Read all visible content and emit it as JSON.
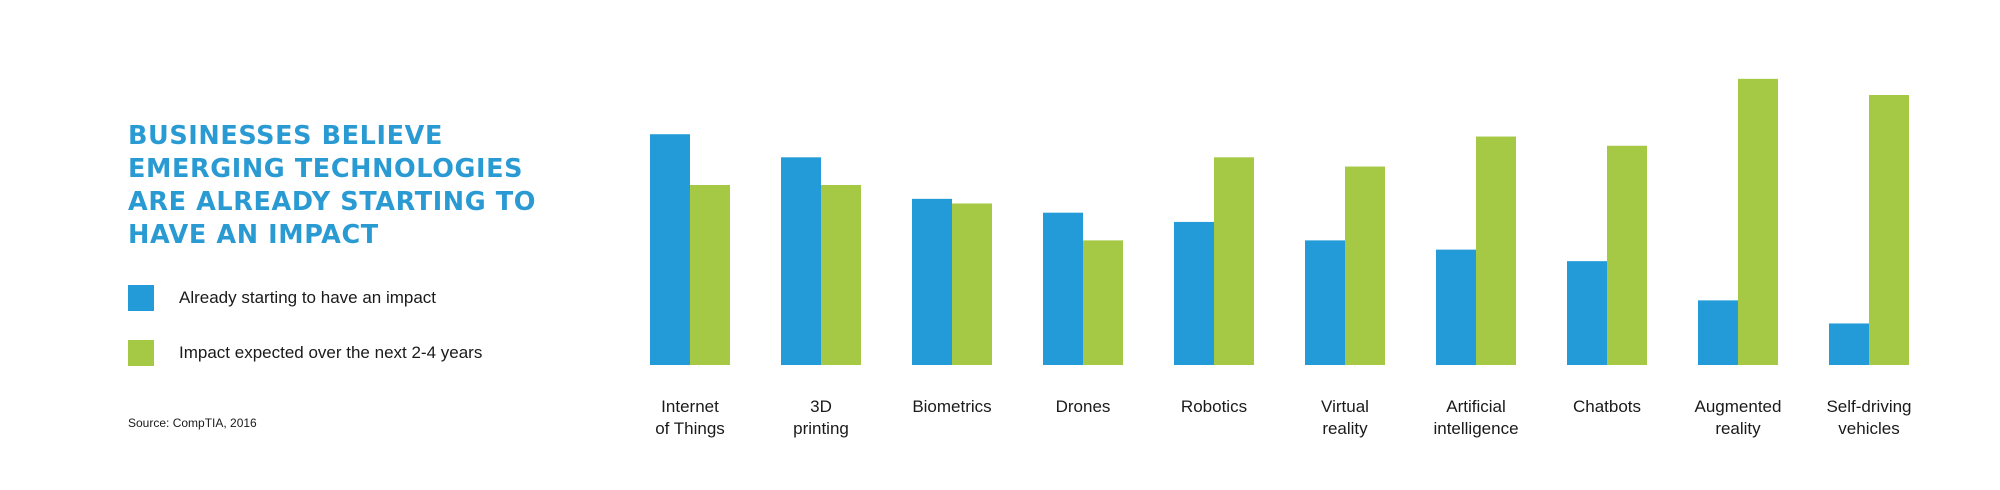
{
  "chart_data": {
    "type": "bar",
    "title": "BUSINESSES BELIEVE EMERGING TECHNOLOGIES ARE ALREADY STARTING TO HAVE AN IMPACT",
    "title_lines": [
      "BUSINESSES BELIEVE",
      "EMERGING TECHNOLOGIES",
      "ARE ALREADY STARTING TO",
      "HAVE AN IMPACT"
    ],
    "categories": [
      [
        "Internet",
        "of Things"
      ],
      [
        "3D",
        "printing"
      ],
      [
        "Biometrics"
      ],
      [
        "Drones"
      ],
      [
        "Robotics"
      ],
      [
        "Virtual",
        "reality"
      ],
      [
        "Artificial",
        "intelligence"
      ],
      [
        "Chatbots"
      ],
      [
        "Augmented",
        "reality"
      ],
      [
        "Self-driving",
        "vehicles"
      ]
    ],
    "series": [
      {
        "name": "Already starting to have an impact",
        "color": "#229bd8",
        "values": [
          50,
          45,
          36,
          33,
          31,
          27,
          25,
          22.5,
          14,
          9
        ]
      },
      {
        "name": "Impact expected over the next 2-4 years",
        "color": "#a5c845",
        "values": [
          39,
          39,
          35,
          27,
          45,
          43,
          49.5,
          47.5,
          62,
          58.5
        ]
      }
    ],
    "ylim": [
      0,
      65
    ],
    "xlabel": "",
    "ylabel": "",
    "grid": false,
    "legend_position": "left",
    "source": "Source: CompTIA, 2016",
    "title_color": "#2a9ad3"
  }
}
